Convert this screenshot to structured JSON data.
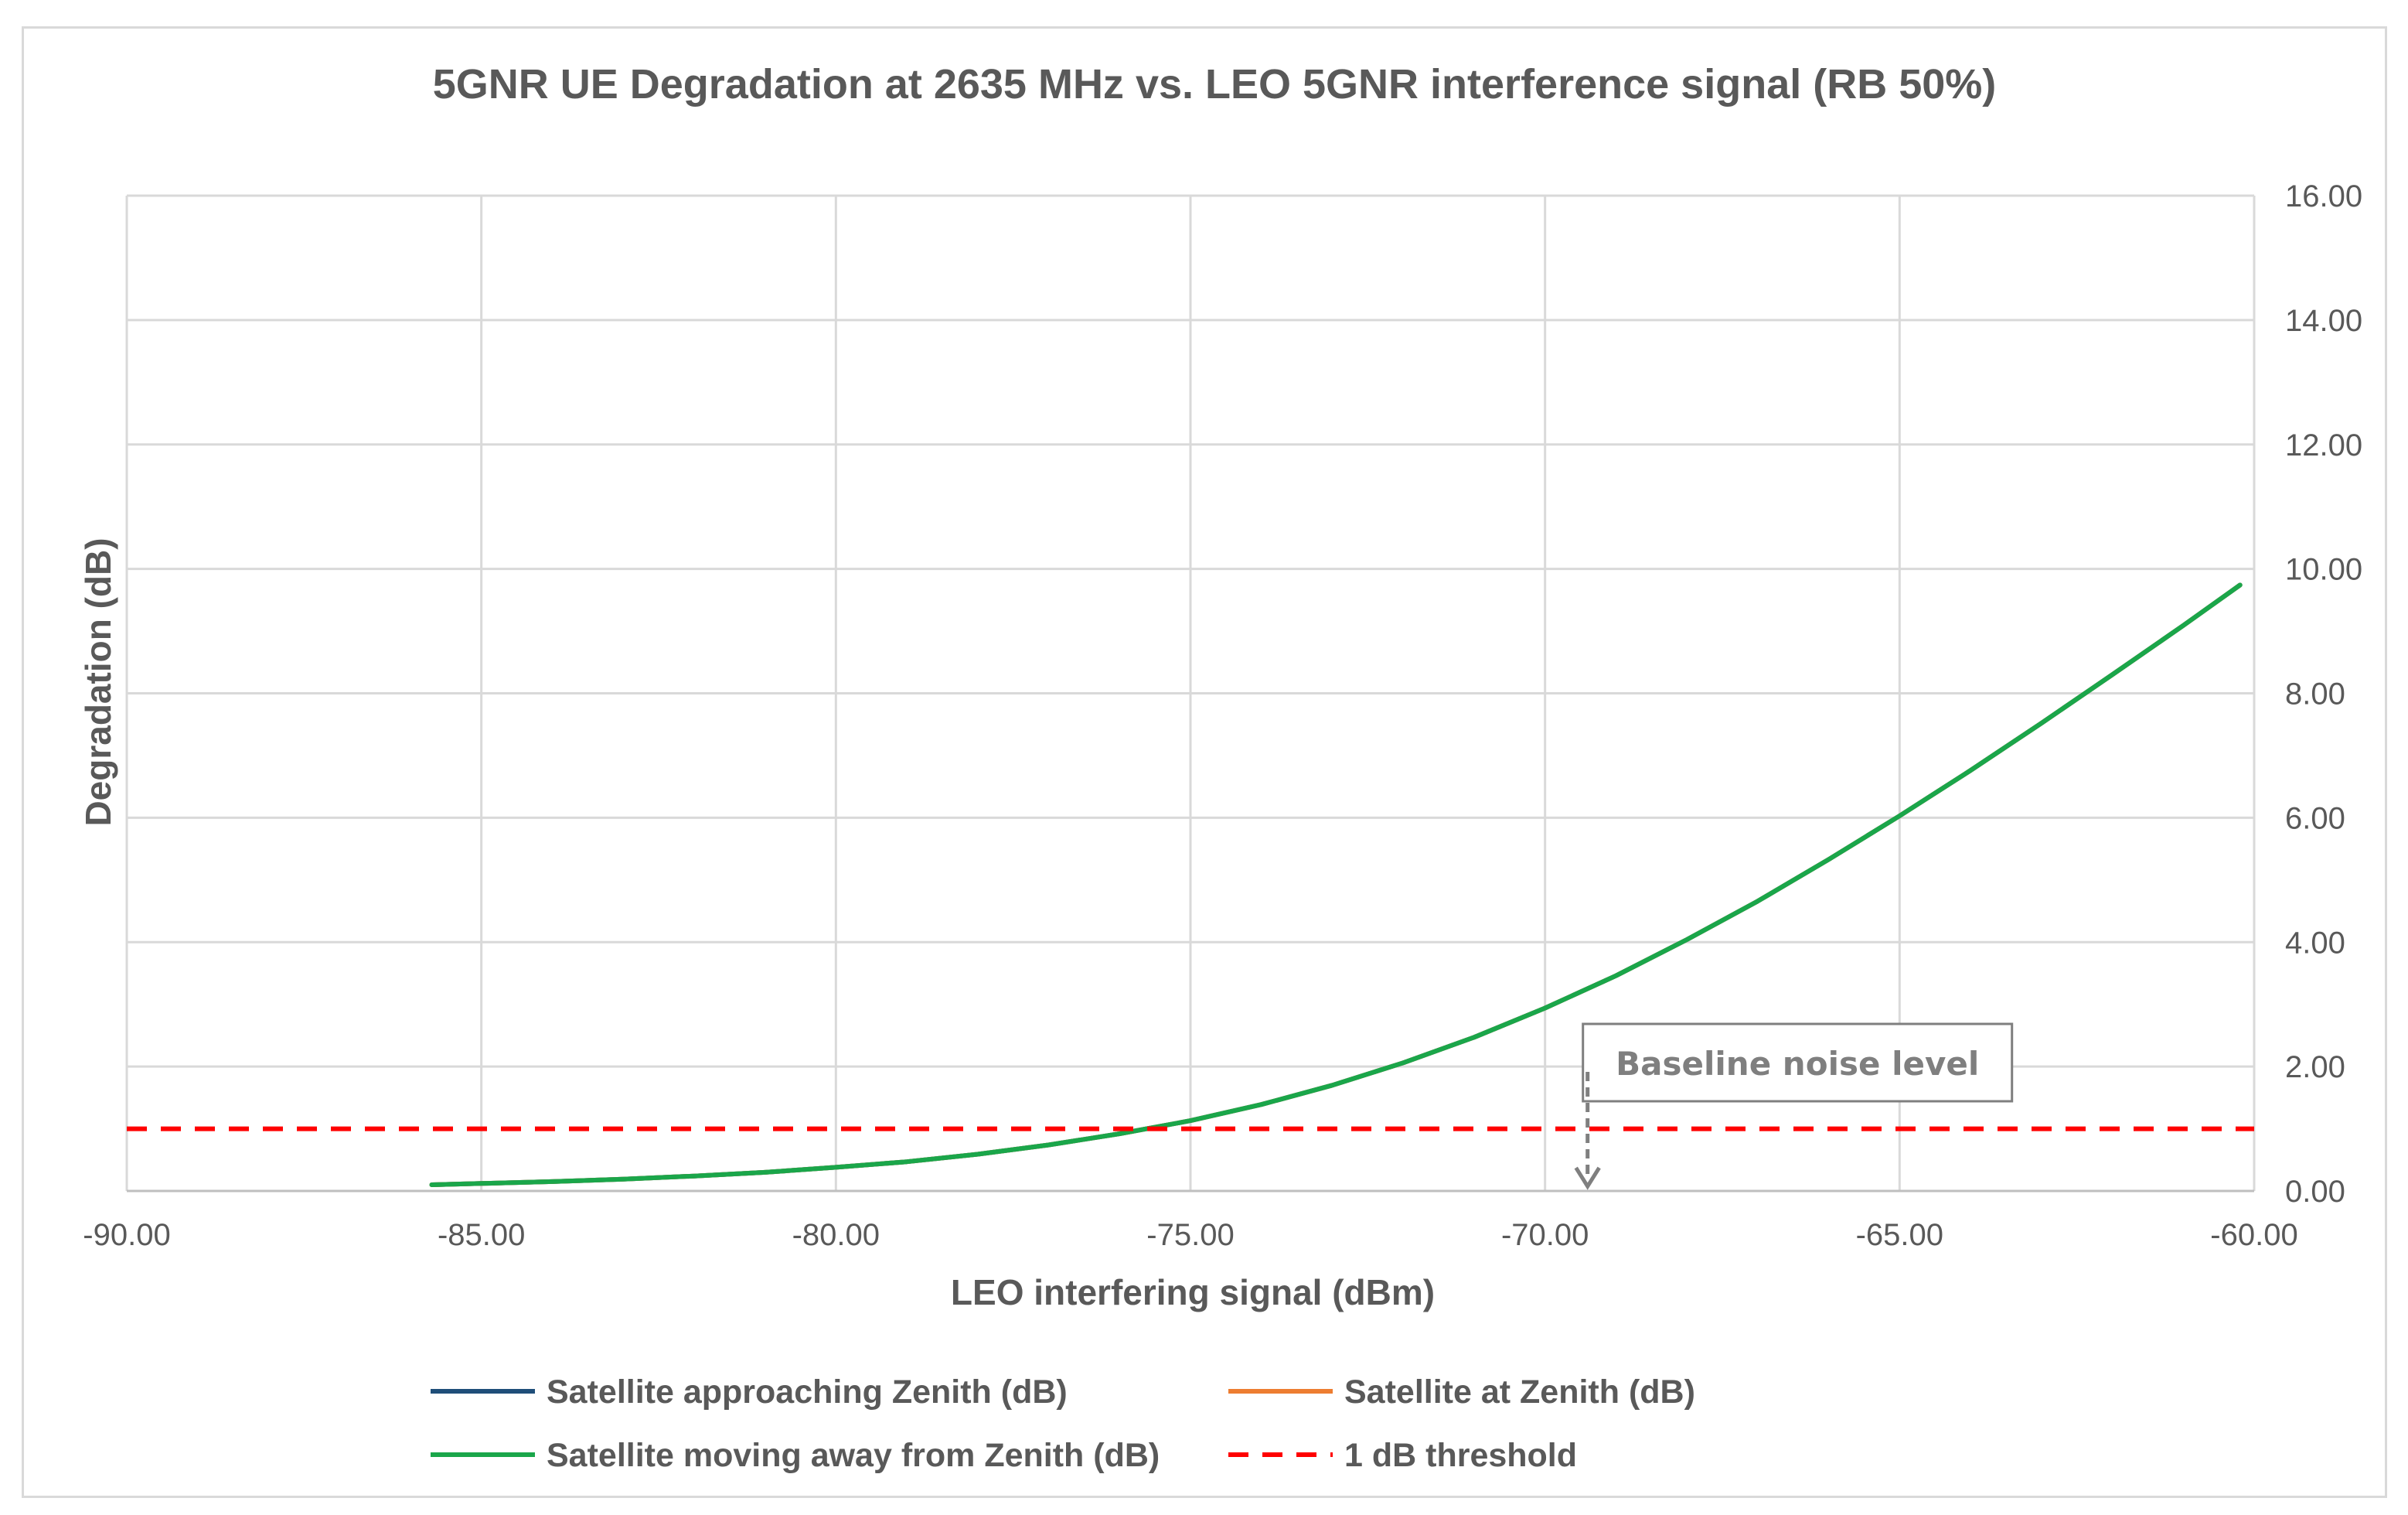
{
  "chart_data": {
    "type": "line",
    "title": "5GNR UE Degradation at 2635 MHz vs. LEO 5GNR interference signal (RB 50%)",
    "xlabel": "LEO interfering signal (dBm)",
    "ylabel": "Degradation (dB)",
    "xlim": [
      -90,
      -60
    ],
    "ylim": [
      0,
      16
    ],
    "x_ticks": [
      "-90.00",
      "-85.00",
      "-80.00",
      "-75.00",
      "-70.00",
      "-65.00",
      "-60.00"
    ],
    "x_tick_values": [
      -90,
      -85,
      -80,
      -75,
      -70,
      -65,
      -60
    ],
    "y_ticks": [
      "0.00",
      "2.00",
      "4.00",
      "6.00",
      "8.00",
      "10.00",
      "12.00",
      "14.00",
      "16.00"
    ],
    "y_tick_values": [
      0,
      2,
      4,
      6,
      8,
      10,
      12,
      14,
      16
    ],
    "y_axis_side": "right",
    "grid": true,
    "legend_position": "bottom",
    "series": [
      {
        "name": "Satellite approaching Zenith (dB)",
        "color": "#1f4e79",
        "style": "solid",
        "x": [
          -85.7,
          -85,
          -84,
          -83,
          -82,
          -81,
          -80,
          -79,
          -78,
          -77,
          -76,
          -75,
          -74,
          -73,
          -72,
          -71,
          -70,
          -69,
          -68,
          -67,
          -66,
          -65,
          -64,
          -63,
          -62,
          -61,
          -60.2
        ],
        "values": [
          0.1,
          0.12,
          0.15,
          0.19,
          0.24,
          0.3,
          0.38,
          0.47,
          0.59,
          0.74,
          0.92,
          1.13,
          1.39,
          1.7,
          2.06,
          2.47,
          2.94,
          3.46,
          4.04,
          4.66,
          5.33,
          6.03,
          6.76,
          7.52,
          8.3,
          9.09,
          9.74
        ]
      },
      {
        "name": "Satellite at Zenith (dB)",
        "color": "#ed7d31",
        "style": "solid",
        "x": [
          -85.7,
          -85,
          -84,
          -83,
          -82,
          -81,
          -80,
          -79,
          -78,
          -77,
          -76,
          -75,
          -74,
          -73,
          -72,
          -71,
          -70,
          -69,
          -68,
          -67,
          -66,
          -65,
          -64,
          -63,
          -62,
          -61,
          -60.2
        ],
        "values": [
          0.1,
          0.12,
          0.15,
          0.19,
          0.24,
          0.3,
          0.38,
          0.47,
          0.59,
          0.74,
          0.92,
          1.13,
          1.39,
          1.7,
          2.06,
          2.47,
          2.94,
          3.46,
          4.04,
          4.66,
          5.33,
          6.03,
          6.76,
          7.52,
          8.3,
          9.09,
          9.74
        ]
      },
      {
        "name": "Satellite moving away from Zenith (dB)",
        "color": "#1aa64a",
        "style": "solid",
        "x": [
          -85.7,
          -85,
          -84,
          -83,
          -82,
          -81,
          -80,
          -79,
          -78,
          -77,
          -76,
          -75,
          -74,
          -73,
          -72,
          -71,
          -70,
          -69,
          -68,
          -67,
          -66,
          -65,
          -64,
          -63,
          -62,
          -61,
          -60.2
        ],
        "values": [
          0.1,
          0.12,
          0.15,
          0.19,
          0.24,
          0.3,
          0.38,
          0.47,
          0.59,
          0.74,
          0.92,
          1.13,
          1.39,
          1.7,
          2.06,
          2.47,
          2.94,
          3.46,
          4.04,
          4.66,
          5.33,
          6.03,
          6.76,
          7.52,
          8.3,
          9.09,
          9.74
        ]
      },
      {
        "name": "1 dB threshold",
        "color": "#ff0000",
        "style": "dashed",
        "x": [
          -90,
          -60
        ],
        "values": [
          1,
          1
        ]
      }
    ],
    "annotation": {
      "text": "Baseline noise level",
      "x": -69.4,
      "y": 0
    }
  }
}
